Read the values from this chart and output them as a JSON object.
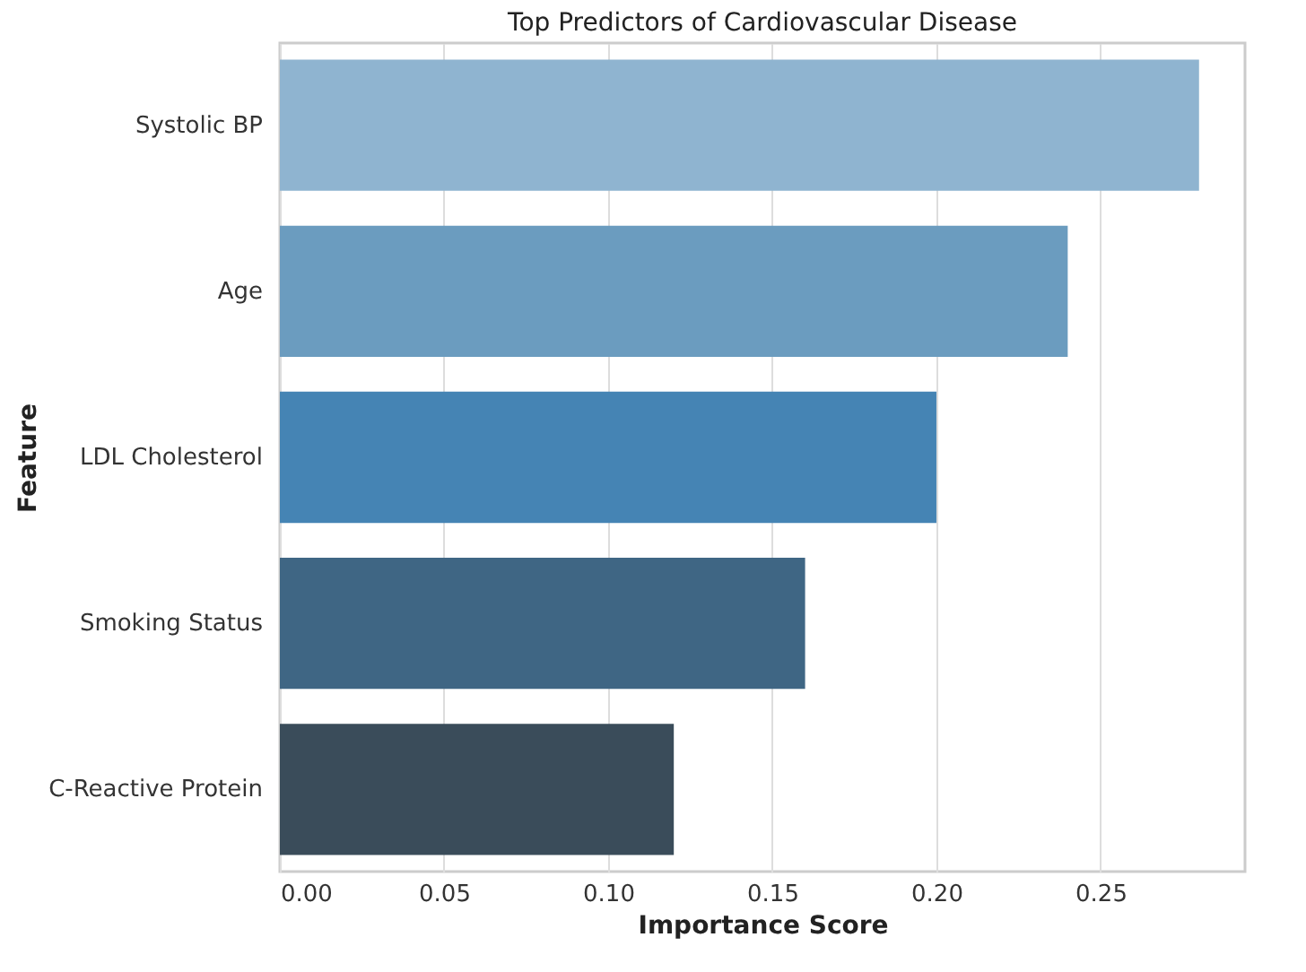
{
  "chart_data": {
    "type": "bar",
    "orientation": "horizontal",
    "title": "Top Predictors of Cardiovascular Disease",
    "xlabel": "Importance Score",
    "ylabel": "Feature",
    "categories": [
      "Systolic BP",
      "Age",
      "LDL Cholesterol",
      "Smoking Status",
      "C-Reactive Protein"
    ],
    "values": [
      0.28,
      0.24,
      0.2,
      0.16,
      0.12
    ],
    "colors": [
      "#8fb4d0",
      "#6b9cbf",
      "#4584b4",
      "#3f6684",
      "#3a4c5a"
    ],
    "xlim": [
      0,
      0.294
    ],
    "xticks": [
      {
        "value": 0,
        "label": "0.00"
      },
      0.05,
      {
        "value": 0.1,
        "label": "0.10"
      },
      0.15,
      {
        "value": 0.2,
        "label": "0.20"
      },
      0.25
    ],
    "grid": "x",
    "legend": false
  }
}
